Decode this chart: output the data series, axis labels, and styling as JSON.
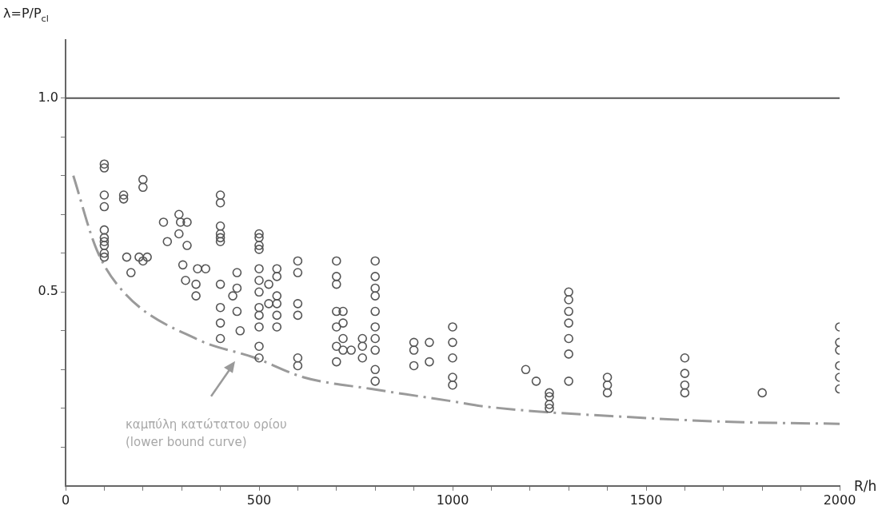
{
  "chart_data": {
    "type": "scatter",
    "xlabel": "R/h",
    "ylabel": "λ=P/P$_{cl}$",
    "xlim": [
      0,
      2000
    ],
    "ylim": [
      0,
      1.15
    ],
    "xticks": [
      0,
      {
        "value": 100,
        "label": null
      },
      {
        "value": 200,
        "label": null
      },
      {
        "value": 300,
        "label": null
      },
      {
        "value": 400,
        "label": null
      },
      500,
      {
        "value": 600,
        "label": null
      },
      {
        "value": 700,
        "label": null
      },
      {
        "value": 800,
        "label": null
      },
      {
        "value": 900,
        "label": null
      },
      1000,
      {
        "value": 1100,
        "label": null
      },
      {
        "value": 1200,
        "label": null
      },
      {
        "value": 1300,
        "label": null
      },
      {
        "value": 1400,
        "label": null
      },
      1500,
      {
        "value": 1600,
        "label": null
      },
      {
        "value": 1700,
        "label": null
      },
      {
        "value": 1800,
        "label": null
      },
      {
        "value": 1900,
        "label": null
      },
      2000
    ],
    "yticks": [
      {
        "value": 0.1,
        "label": null
      },
      {
        "value": 0.2,
        "label": null
      },
      {
        "value": 0.3,
        "label": null
      },
      {
        "value": 0.4,
        "label": null
      },
      {
        "value": 0.5,
        "label": "0.5"
      },
      {
        "value": 0.6,
        "label": null
      },
      {
        "value": 0.7,
        "label": null
      },
      {
        "value": 0.8,
        "label": null
      },
      {
        "value": 0.9,
        "label": null
      },
      {
        "value": 1.0,
        "label": "1.0"
      }
    ],
    "grid": false,
    "legend": false,
    "ref_lines": [
      {
        "axis": "y",
        "value": 1.0,
        "color": "#555555"
      }
    ],
    "annotations": [
      "καμπύλη κατώτατου ορίου\n(lower bound curve)"
    ],
    "series": [
      {
        "type": "scatter",
        "color": "#555555",
        "marker": "circle",
        "x": [
          100,
          100,
          100,
          100,
          100,
          100,
          100,
          100,
          100,
          100,
          150,
          150,
          200,
          200,
          158,
          169,
          190,
          200,
          211,
          253,
          263,
          293,
          297,
          314,
          293,
          314,
          303,
          310,
          341,
          362,
          337,
          337,
          400,
          400,
          400,
          400,
          400,
          400,
          400,
          400,
          400,
          400,
          443,
          432,
          443,
          443,
          451,
          500,
          500,
          500,
          500,
          500,
          500,
          500,
          500,
          500,
          500,
          500,
          500,
          525,
          525,
          546,
          546,
          546,
          546,
          546,
          546,
          600,
          600,
          600,
          600,
          600,
          600,
          700,
          700,
          700,
          700,
          700,
          700,
          700,
          717,
          717,
          717,
          717,
          738,
          767,
          767,
          767,
          800,
          800,
          800,
          800,
          800,
          800,
          800,
          800,
          800,
          800,
          900,
          900,
          900,
          940,
          940,
          1000,
          1000,
          1000,
          1000,
          1000,
          1189,
          1216,
          1250,
          1250,
          1250,
          1250,
          1300,
          1300,
          1300,
          1300,
          1300,
          1300,
          1300,
          1400,
          1400,
          1400,
          1600,
          1600,
          1600,
          1600,
          1800,
          2000,
          2000,
          2000,
          2000,
          2000,
          2000
        ],
        "values": [
          0.83,
          0.82,
          0.75,
          0.72,
          0.66,
          0.64,
          0.63,
          0.62,
          0.6,
          0.59,
          0.75,
          0.74,
          0.79,
          0.77,
          0.59,
          0.55,
          0.59,
          0.58,
          0.59,
          0.68,
          0.63,
          0.7,
          0.68,
          0.68,
          0.65,
          0.62,
          0.57,
          0.53,
          0.56,
          0.56,
          0.52,
          0.49,
          0.75,
          0.73,
          0.67,
          0.65,
          0.64,
          0.63,
          0.52,
          0.46,
          0.42,
          0.38,
          0.55,
          0.49,
          0.51,
          0.45,
          0.4,
          0.65,
          0.64,
          0.62,
          0.61,
          0.56,
          0.53,
          0.5,
          0.46,
          0.44,
          0.41,
          0.36,
          0.33,
          0.52,
          0.47,
          0.56,
          0.54,
          0.49,
          0.47,
          0.44,
          0.41,
          0.58,
          0.55,
          0.47,
          0.44,
          0.33,
          0.31,
          0.58,
          0.54,
          0.52,
          0.45,
          0.41,
          0.36,
          0.32,
          0.45,
          0.42,
          0.38,
          0.35,
          0.35,
          0.38,
          0.36,
          0.33,
          0.58,
          0.54,
          0.51,
          0.49,
          0.45,
          0.41,
          0.38,
          0.35,
          0.3,
          0.27,
          0.37,
          0.35,
          0.31,
          0.37,
          0.32,
          0.41,
          0.37,
          0.33,
          0.28,
          0.26,
          0.3,
          0.27,
          0.24,
          0.23,
          0.21,
          0.2,
          0.5,
          0.48,
          0.45,
          0.42,
          0.38,
          0.34,
          0.27,
          0.28,
          0.26,
          0.24,
          0.33,
          0.29,
          0.26,
          0.24,
          0.24,
          0.41,
          0.37,
          0.35,
          0.31,
          0.28,
          0.25
        ]
      },
      {
        "type": "line",
        "color": "#9a9a9a",
        "line_style": "dashed",
        "marker": "none",
        "x": [
          20,
          80,
          150,
          340,
          490,
          615,
          790,
          1000,
          1080,
          1500,
          1720,
          2000
        ],
        "values": [
          0.8,
          0.61,
          0.5,
          0.378,
          0.33,
          0.28,
          0.25,
          0.218,
          0.205,
          0.175,
          0.165,
          0.16
        ]
      }
    ]
  }
}
